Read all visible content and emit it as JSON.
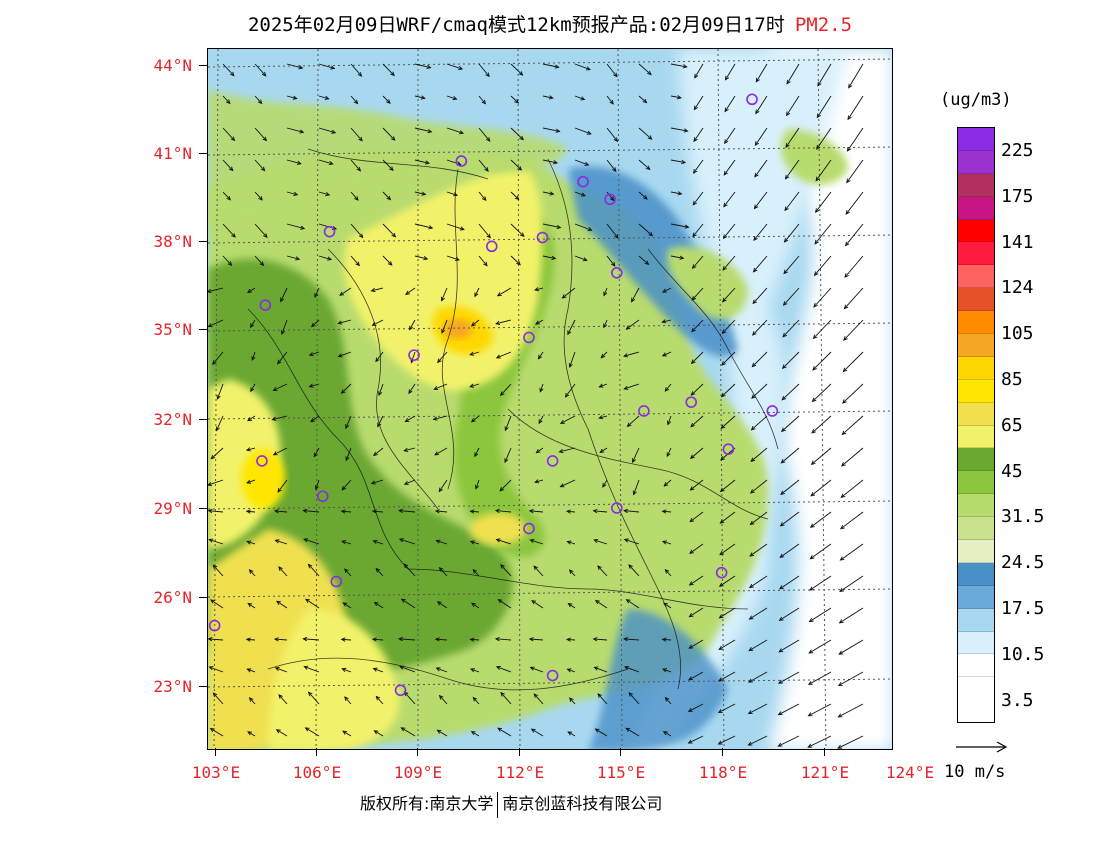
{
  "title": {
    "text": "2025年02月09日WRF/cmaq模式12km预报产品:02月09日17时",
    "pollutant": "PM2.5"
  },
  "latitude_labels": [
    "44°N",
    "41°N",
    "38°N",
    "35°N",
    "32°N",
    "29°N",
    "26°N",
    "23°N"
  ],
  "longitude_labels": [
    "103°E",
    "106°E",
    "109°E",
    "112°E",
    "115°E",
    "118°E",
    "121°E",
    "124°E"
  ],
  "legend": {
    "unit": "(ug/m3)",
    "colors": [
      "#8b2be2",
      "#9a32cd",
      "#b03060",
      "#c71585",
      "#ff0000",
      "#ff1a40",
      "#ff6060",
      "#e8502a",
      "#ff8c00",
      "#f5a623",
      "#ffd700",
      "#ffe600",
      "#f0e050",
      "#f2f26a",
      "#6aa832",
      "#8cc63e",
      "#b8db6e",
      "#cbe28c",
      "#e4efc4",
      "#4a90c8",
      "#6aaad8",
      "#a8d8f0",
      "#d8f0fb",
      "#ffffff"
    ],
    "tick_labels": [
      "225",
      "175",
      "141",
      "124",
      "105",
      "85",
      "65",
      "45",
      "31.5",
      "24.5",
      "17.5",
      "10.5",
      "3.5"
    ]
  },
  "reference_vector": {
    "label": "10 m/s"
  },
  "copyright": {
    "left": "版权所有:南京大学",
    "right": "南京创蓝科技有限公司"
  },
  "cities": [
    {
      "lon": 118.8,
      "lat": 42.9
    },
    {
      "lon": 110.2,
      "lat": 40.8
    },
    {
      "lon": 113.8,
      "lat": 40.1
    },
    {
      "lon": 114.6,
      "lat": 39.5
    },
    {
      "lon": 106.3,
      "lat": 38.4
    },
    {
      "lon": 111.1,
      "lat": 37.9
    },
    {
      "lon": 112.6,
      "lat": 38.2
    },
    {
      "lon": 114.8,
      "lat": 37.0
    },
    {
      "lon": 104.4,
      "lat": 35.9
    },
    {
      "lon": 112.2,
      "lat": 34.8
    },
    {
      "lon": 108.8,
      "lat": 34.2
    },
    {
      "lon": 117.0,
      "lat": 32.6
    },
    {
      "lon": 115.6,
      "lat": 32.3
    },
    {
      "lon": 119.4,
      "lat": 32.3
    },
    {
      "lon": 118.1,
      "lat": 31.0
    },
    {
      "lon": 104.3,
      "lat": 30.6
    },
    {
      "lon": 112.9,
      "lat": 30.6
    },
    {
      "lon": 106.1,
      "lat": 29.4
    },
    {
      "lon": 114.8,
      "lat": 29.0
    },
    {
      "lon": 112.2,
      "lat": 28.3
    },
    {
      "lon": 117.9,
      "lat": 26.8
    },
    {
      "lon": 106.5,
      "lat": 26.5
    },
    {
      "lon": 102.9,
      "lat": 25.0
    },
    {
      "lon": 112.9,
      "lat": 23.3
    },
    {
      "lon": 108.4,
      "lat": 22.8
    }
  ]
}
